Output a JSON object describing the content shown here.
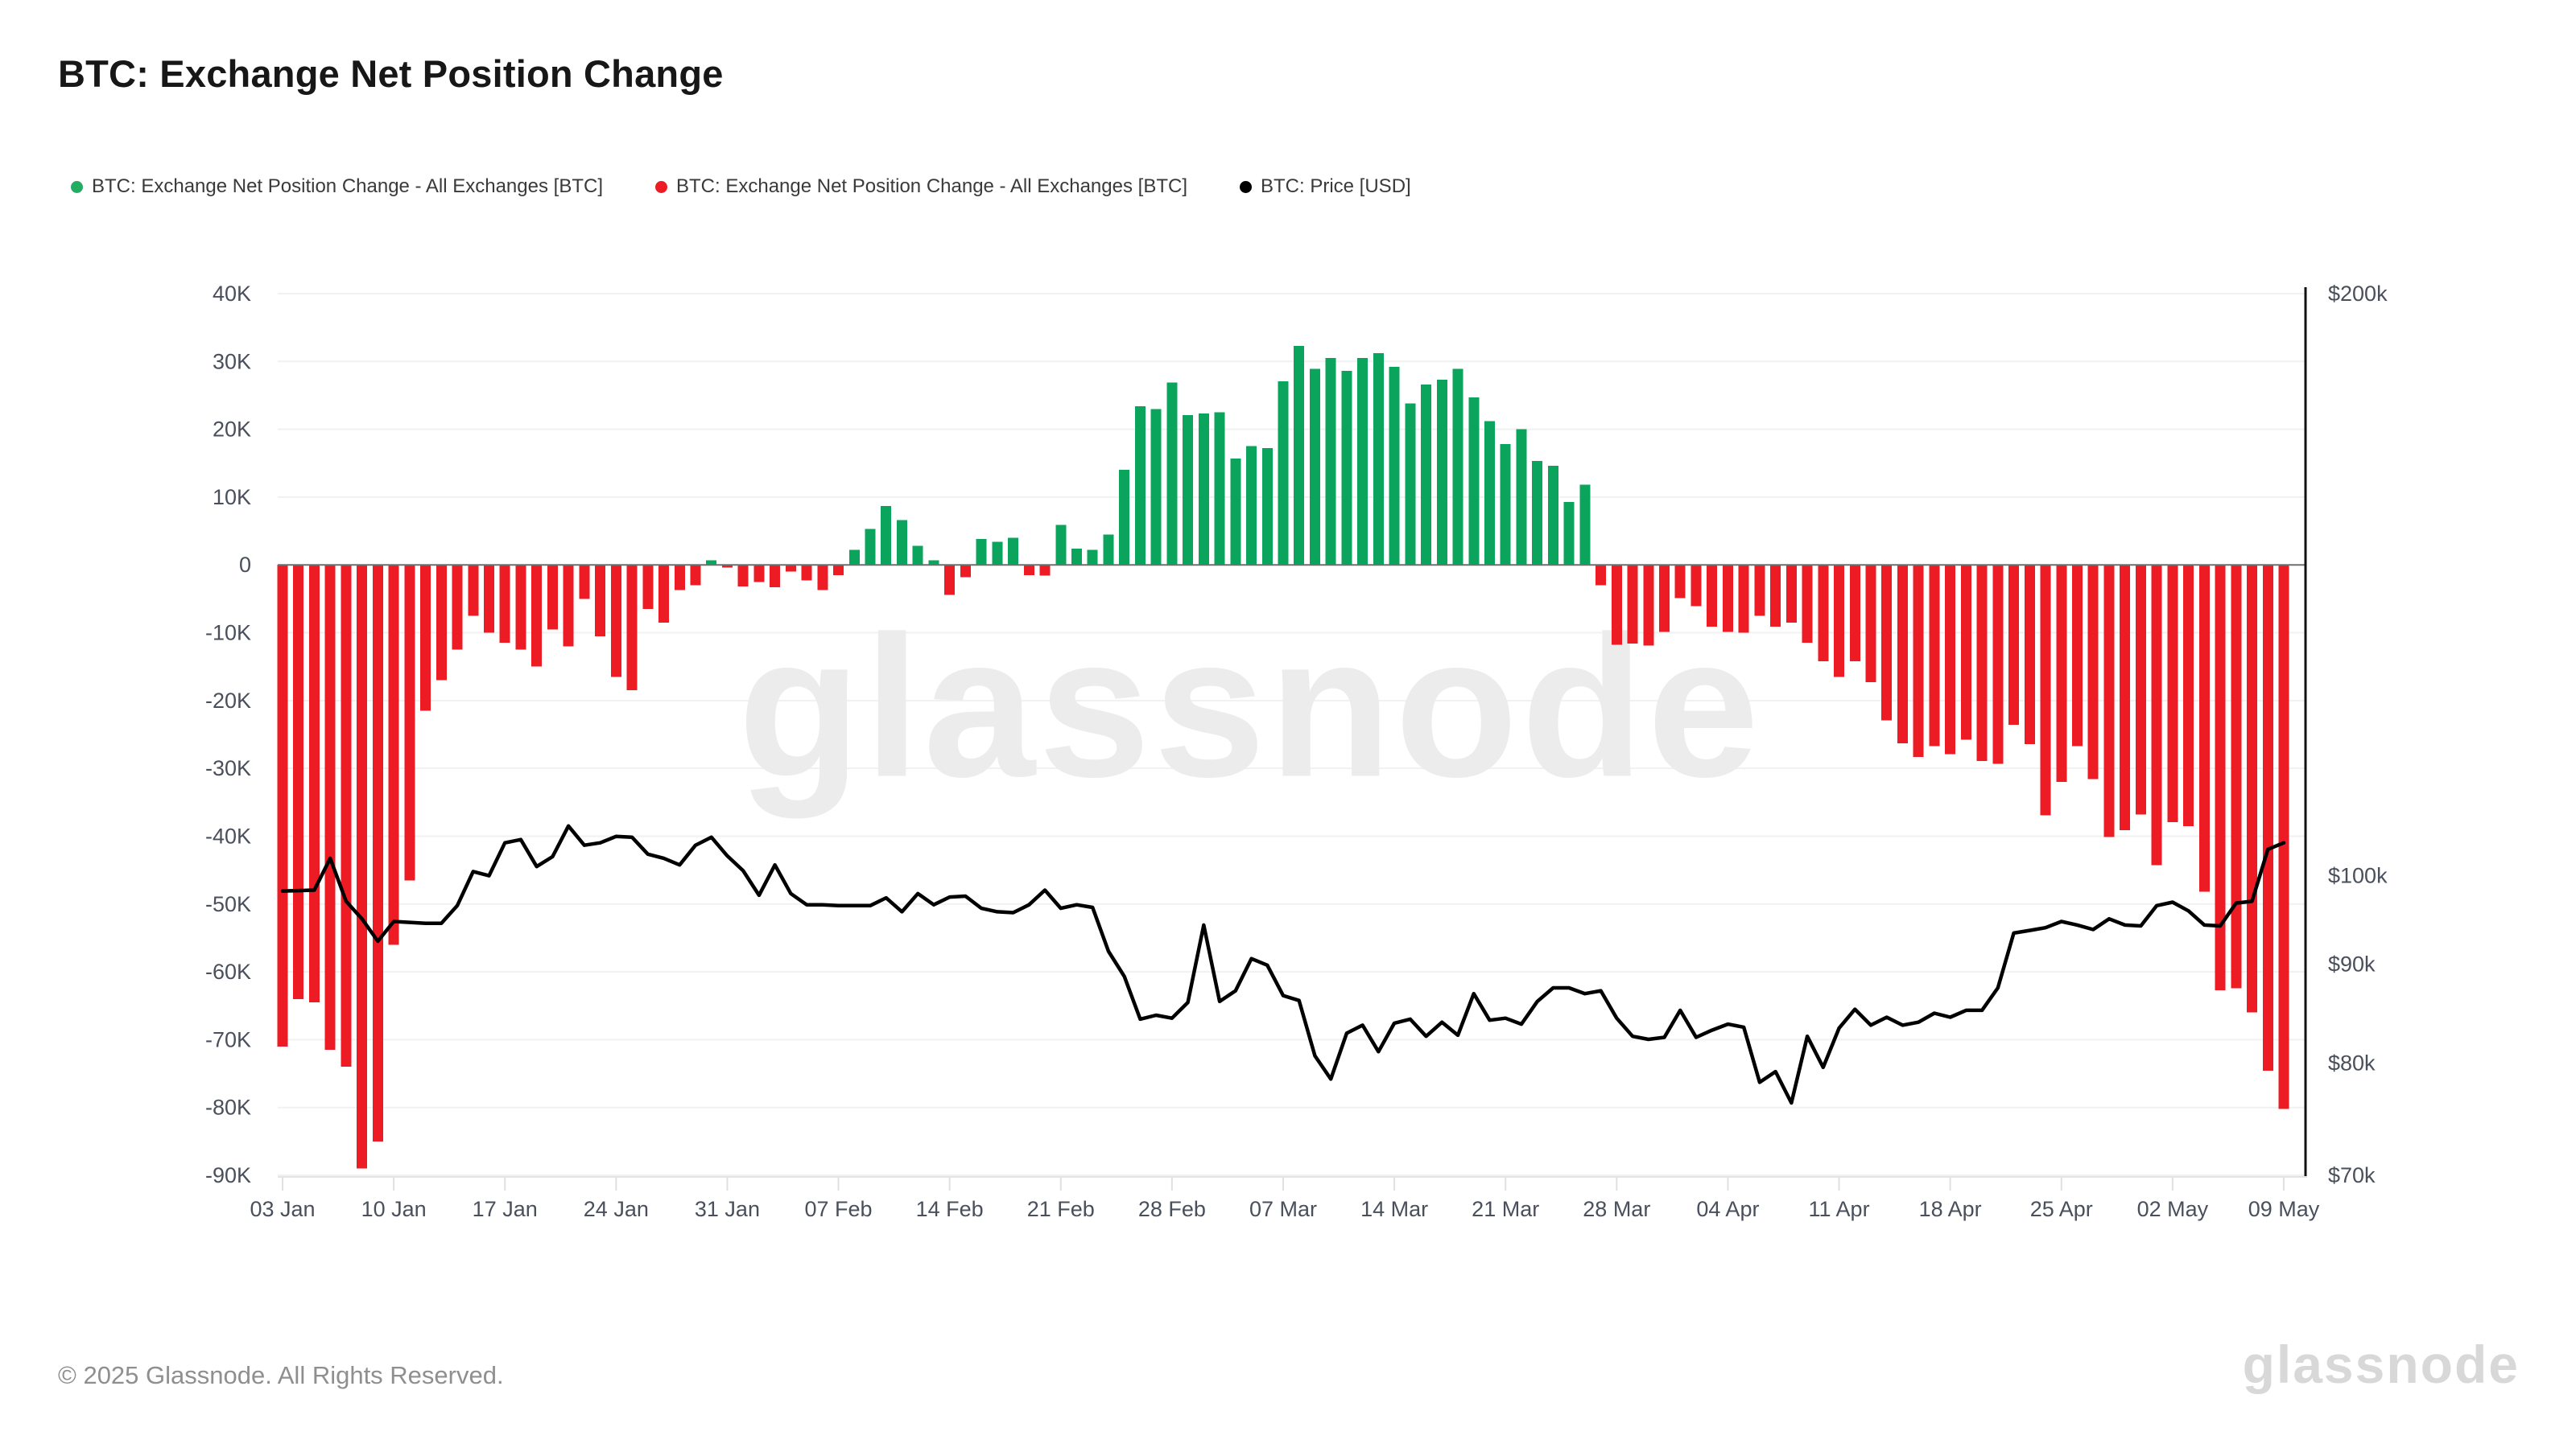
{
  "page": {
    "title": "BTC: Exchange Net Position Change",
    "footer": "© 2025 Glassnode. All Rights Reserved.",
    "brand": "glassnode",
    "watermark": "glassnode"
  },
  "legend": [
    {
      "label": "BTC: Exchange Net Position Change - All Exchanges [BTC]",
      "color": "#23ad62"
    },
    {
      "label": "BTC: Exchange Net Position Change - All Exchanges [BTC]",
      "color": "#ed1c24"
    },
    {
      "label": "BTC: Price [USD]",
      "color": "#000000"
    }
  ],
  "chart_data": {
    "type": "bar",
    "title": "BTC: Exchange Net Position Change",
    "x_start_date": "2025-01-03",
    "x_interval": "daily",
    "x_count": 127,
    "x_tick_labels": [
      "03 Jan",
      "10 Jan",
      "17 Jan",
      "24 Jan",
      "31 Jan",
      "07 Feb",
      "14 Feb",
      "21 Feb",
      "28 Feb",
      "07 Mar",
      "14 Mar",
      "21 Mar",
      "28 Mar",
      "04 Apr",
      "11 Apr",
      "18 Apr",
      "25 Apr",
      "02 May",
      "09 May"
    ],
    "grid": true,
    "legend_position": "top",
    "left_axis": {
      "unit": "BTC",
      "tick_labels": [
        "40K",
        "30K",
        "20K",
        "10K",
        "0",
        "-10K",
        "-20K",
        "-30K",
        "-40K",
        "-50K",
        "-60K",
        "-70K",
        "-80K",
        "-90K"
      ],
      "tick_values_k": [
        40,
        30,
        20,
        10,
        0,
        -10,
        -20,
        -30,
        -40,
        -50,
        -60,
        -70,
        -80,
        -90
      ],
      "range_k": [
        -90,
        40
      ]
    },
    "right_axis": {
      "unit": "USD",
      "scale": "log",
      "tick_labels": [
        "$200k",
        "$100k",
        "$90k",
        "$80k",
        "$70k"
      ],
      "tick_values_usd": [
        200000,
        100000,
        90000,
        80000,
        70000
      ],
      "range_usd": [
        70000,
        200000
      ]
    },
    "series": [
      {
        "name": "BTC: Exchange Net Position Change - All Exchanges [BTC]",
        "type": "bar",
        "axis": "left",
        "unit": "thousand BTC",
        "color_positive": "#0aa45c",
        "color_negative": "#ed1c24",
        "values_k": [
          -71,
          -64,
          -64.5,
          -71.5,
          -74,
          -89,
          -85,
          -56,
          -46.5,
          -21.5,
          -17,
          -12.5,
          -7.5,
          -10,
          -11.5,
          -12.5,
          -15,
          -9.5,
          -12,
          -5,
          -10.5,
          -16.5,
          -18.5,
          -6.5,
          -8.5,
          -3.7,
          -3,
          0.7,
          -0.4,
          -3.2,
          -2.5,
          -3.3,
          -1,
          -2.3,
          -3.7,
          -1.5,
          2.2,
          5.3,
          8.7,
          6.6,
          2.8,
          0.7,
          -4.4,
          -1.8,
          3.8,
          3.4,
          4,
          -1.5,
          -1.6,
          5.9,
          2.4,
          2.2,
          4.5,
          14,
          23.4,
          23,
          26.9,
          22.1,
          22.3,
          22.5,
          15.7,
          17.5,
          17.2,
          27.1,
          32.3,
          28.9,
          30.5,
          28.6,
          30.5,
          31.2,
          29.2,
          23.8,
          26.6,
          27.3,
          28.9,
          24.7,
          21.2,
          17.8,
          20,
          15.3,
          14.6,
          9.3,
          11.8,
          -3,
          -11.8,
          -11.6,
          -11.9,
          -9.9,
          -4.9,
          -6.1,
          -9.1,
          -9.9,
          -10,
          -7.5,
          -9.1,
          -8.5,
          -11.5,
          -14.2,
          -16.5,
          -14.2,
          -17.3,
          -22.9,
          -26.3,
          -28.3,
          -26.7,
          -27.9,
          -25.8,
          -28.9,
          -29.3,
          -23.6,
          -26.4,
          -36.9,
          -32,
          -26.7,
          -31.6,
          -40.1,
          -39.1,
          -36.8,
          -44.3,
          -37.9,
          -38.5,
          -48.2,
          -62.7,
          -62.4,
          -66,
          -74.6,
          -80.2
        ]
      },
      {
        "name": "BTC: Price [USD]",
        "type": "line",
        "axis": "right",
        "unit": "USD",
        "color": "#000000",
        "values_usd": [
          98200,
          98250,
          98300,
          102100,
          97000,
          95000,
          92500,
          94700,
          94600,
          94500,
          94500,
          96500,
          100500,
          100000,
          104000,
          104400,
          101100,
          102300,
          106100,
          103700,
          104000,
          104800,
          104700,
          102600,
          102100,
          101300,
          103700,
          104700,
          102400,
          100600,
          97700,
          101300,
          97900,
          96600,
          96600,
          96500,
          96500,
          96500,
          97400,
          95800,
          97900,
          96600,
          97500,
          97600,
          96200,
          95800,
          95700,
          96600,
          98300,
          96200,
          96600,
          96300,
          91400,
          88700,
          84300,
          84700,
          84400,
          86000,
          94300,
          86100,
          87200,
          90600,
          89900,
          86700,
          86200,
          80700,
          78500,
          82900,
          83700,
          81100,
          83900,
          84300,
          82600,
          84000,
          82700,
          86900,
          84200,
          84400,
          83800,
          86100,
          87500,
          87500,
          86900,
          87200,
          84400,
          82600,
          82300,
          82500,
          85200,
          82500,
          83200,
          83800,
          83500,
          78200,
          79200,
          76300,
          82600,
          79600,
          83400,
          85300,
          83700,
          84500,
          83700,
          84000,
          84900,
          84500,
          85200,
          85200,
          87500,
          93400,
          93700,
          94000,
          94700,
          94300,
          93800,
          95000,
          94300,
          94200,
          96500,
          96900,
          95900,
          94300,
          94200,
          96800,
          97000,
          103200,
          104000
        ]
      }
    ]
  }
}
